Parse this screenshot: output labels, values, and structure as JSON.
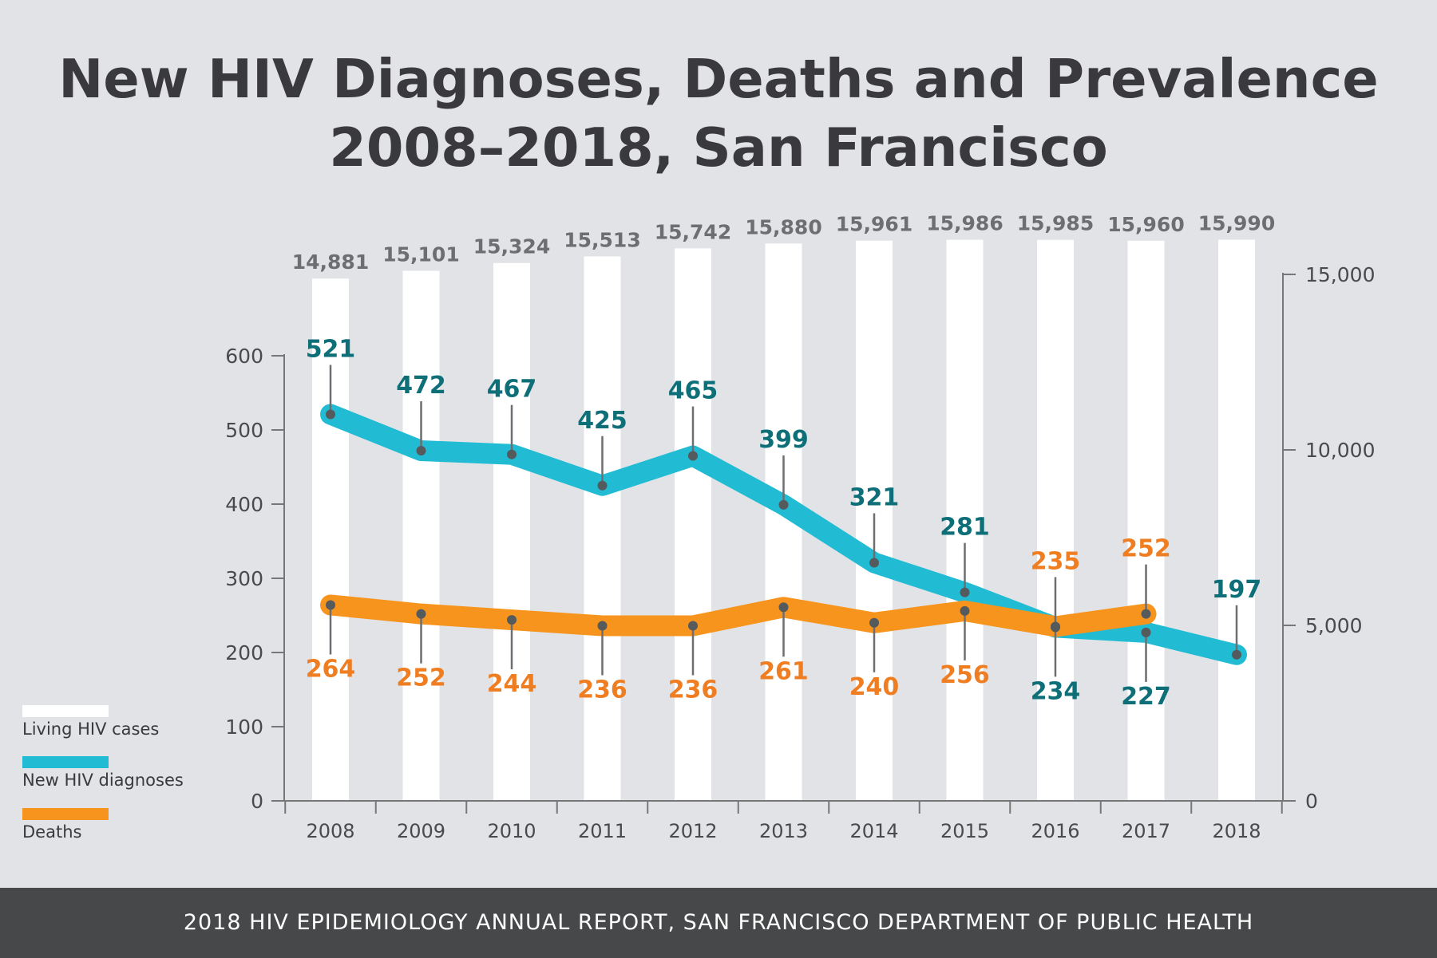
{
  "title": {
    "line1": "New HIV Diagnoses, Deaths and Prevalence",
    "line2": "2008–2018, San Francisco"
  },
  "legend": [
    {
      "label": "Living HIV cases",
      "color": "#ffffff"
    },
    {
      "label": "New HIV diagnoses",
      "color": "#21bcd3"
    },
    {
      "label": "Deaths",
      "color": "#f7941d"
    }
  ],
  "footer": "2018 HIV EPIDEMIOLOGY ANNUAL REPORT, SAN FRANCISCO DEPARTMENT OF PUBLIC HEALTH",
  "colors": {
    "background": "#e1e3e6",
    "bars": "#ffffff",
    "diagnoses_line": "#21bcd3",
    "diagnoses_label": "#0f6f78",
    "deaths_line": "#f7941d",
    "deaths_label": "#ef7d22",
    "prevalence_label": "#6d6e71",
    "axis": "#777777"
  },
  "chart_data": {
    "type": "bar",
    "categories": [
      "2008",
      "2009",
      "2010",
      "2011",
      "2012",
      "2013",
      "2014",
      "2015",
      "2016",
      "2017",
      "2018"
    ],
    "series": [
      {
        "name": "Living HIV cases",
        "type": "bar",
        "axis": "right",
        "values": [
          14881,
          15101,
          15324,
          15513,
          15742,
          15880,
          15961,
          15986,
          15985,
          15960,
          15990
        ],
        "labels": [
          "14,881",
          "15,101",
          "15,324",
          "15,513",
          "15,742",
          "15,880",
          "15,961",
          "15,986",
          "15,985",
          "15,960",
          "15,990"
        ]
      },
      {
        "name": "New HIV diagnoses",
        "type": "line",
        "axis": "left",
        "values": [
          521,
          472,
          467,
          425,
          465,
          399,
          321,
          281,
          234,
          227,
          197
        ]
      },
      {
        "name": "Deaths",
        "type": "line",
        "axis": "left",
        "values": [
          264,
          252,
          244,
          236,
          236,
          261,
          240,
          256,
          235,
          252,
          null
        ]
      }
    ],
    "left_axis": {
      "ticks": [
        "0",
        "100",
        "200",
        "300",
        "400",
        "500",
        "600"
      ],
      "range": [
        0,
        600
      ]
    },
    "right_axis": {
      "ticks": [
        "0",
        "5,000",
        "10,000",
        "15,000"
      ],
      "range": [
        0,
        15000
      ]
    },
    "xlabel": "",
    "ylabel": "",
    "grid": false,
    "legend_position": "bottom-left"
  }
}
